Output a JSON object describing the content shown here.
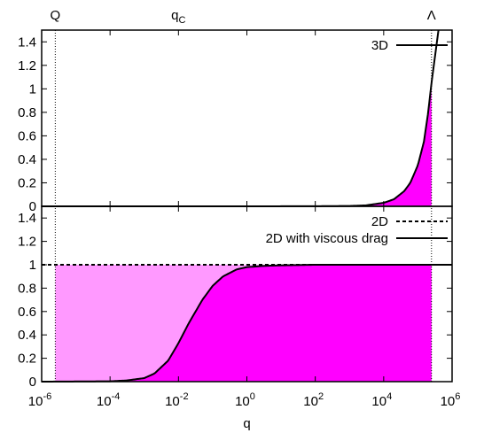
{
  "chart_data": {
    "type": "line",
    "xlabel": "q",
    "x_scale": "log",
    "xlim": [
      1e-06,
      1000000.0
    ],
    "x_ticks": [
      {
        "value": 1e-06,
        "base": "10",
        "exp": "-6"
      },
      {
        "value": 0.0001,
        "base": "10",
        "exp": "-4"
      },
      {
        "value": 0.01,
        "base": "10",
        "exp": "-2"
      },
      {
        "value": 1,
        "base": "10",
        "exp": "0"
      },
      {
        "value": 100.0,
        "base": "10",
        "exp": "2"
      },
      {
        "value": 10000.0,
        "base": "10",
        "exp": "4"
      },
      {
        "value": 1000000.0,
        "base": "10",
        "exp": "6"
      }
    ],
    "top_markers": [
      {
        "label": "Q",
        "sub": "",
        "value": 2.5e-06
      },
      {
        "label": "q",
        "sub": "C",
        "value": 0.01
      },
      {
        "label": "Λ",
        "sub": "",
        "value": 250000.0
      }
    ],
    "panels": [
      {
        "ylim": [
          0,
          1.5
        ],
        "y_ticks": [
          "0",
          "0.2",
          "0.4",
          "0.6",
          "0.8",
          "1",
          "1.2",
          "1.4"
        ],
        "y_tick_values": [
          0,
          0.2,
          0.4,
          0.6,
          0.8,
          1,
          1.2,
          1.4
        ],
        "series": [
          {
            "name": "3D",
            "style": "solid",
            "fill": "#ff00ff",
            "fill_range": [
              2.5e-06,
              250000.0
            ],
            "x": [
              1e-06,
              1,
              100,
              1000,
              3000,
              10000,
              20000,
              40000,
              60000,
              100000,
              150000,
              200000,
              250000,
              400000
            ],
            "y": [
              0,
              0,
              0.001,
              0.003,
              0.008,
              0.03,
              0.06,
              0.13,
              0.2,
              0.35,
              0.55,
              0.8,
              1.05,
              1.5
            ]
          }
        ]
      },
      {
        "ylim": [
          0,
          1.5
        ],
        "y_ticks": [
          "0",
          "0.2",
          "0.4",
          "0.6",
          "0.8",
          "1",
          "1.2",
          "1.4"
        ],
        "y_tick_values": [
          0,
          0.2,
          0.4,
          0.6,
          0.8,
          1,
          1.2,
          1.4
        ],
        "series": [
          {
            "name": "2D",
            "style": "dashed",
            "fill": "#ff99ff",
            "fill_range": [
              2.5e-06,
              250000.0
            ],
            "x": [
              1e-06,
              1000000.0
            ],
            "y": [
              1,
              1
            ]
          },
          {
            "name": "2D with viscous drag",
            "style": "solid",
            "fill": "#ff00ff",
            "fill_range": [
              2.5e-06,
              250000.0
            ],
            "x": [
              1e-06,
              0.0001,
              0.0003,
              0.001,
              0.002,
              0.005,
              0.01,
              0.02,
              0.05,
              0.1,
              0.2,
              0.5,
              1,
              3,
              10,
              100,
              10000.0,
              1000000.0
            ],
            "y": [
              0,
              0.003,
              0.01,
              0.03,
              0.07,
              0.18,
              0.33,
              0.5,
              0.7,
              0.82,
              0.9,
              0.96,
              0.98,
              0.99,
              0.995,
              1,
              1,
              1
            ]
          }
        ]
      }
    ]
  }
}
